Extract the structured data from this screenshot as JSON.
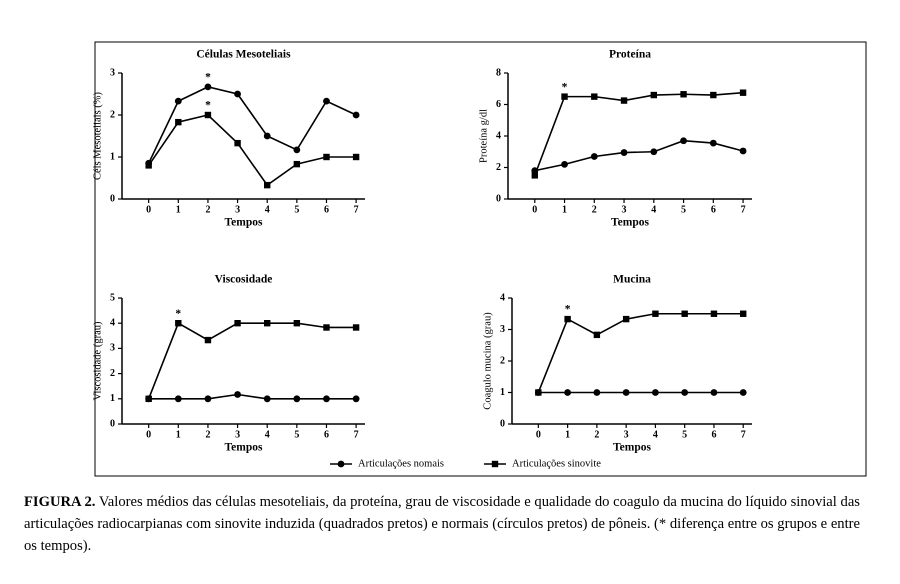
{
  "chart_data": [
    {
      "type": "line",
      "title": "Células Mesoteliais",
      "xlabel": "Tempos",
      "ylabel": "Céls Mesoteliais (%)",
      "x": [
        0,
        1,
        2,
        3,
        4,
        5,
        6,
        7
      ],
      "xlim": [
        -0.9,
        7.3
      ],
      "xticks": [
        0,
        1,
        2,
        3,
        4,
        5,
        6,
        7
      ],
      "ylim": [
        0,
        3
      ],
      "yticks": [
        0,
        1,
        2,
        3
      ],
      "series": [
        {
          "name": "Articulações nomais",
          "color": "#000000",
          "marker": "circle",
          "values": [
            0.85,
            2.33,
            2.67,
            2.5,
            1.5,
            1.17,
            2.33,
            2.0
          ]
        },
        {
          "name": "Articulações sinovite",
          "color": "#000000",
          "marker": "square",
          "values": [
            0.8,
            1.83,
            2.0,
            1.33,
            0.33,
            0.83,
            1.0,
            1.0
          ]
        }
      ],
      "annotations": [
        {
          "text": "*",
          "x": 2,
          "series": 0
        },
        {
          "text": "*",
          "x": 2,
          "series": 1
        }
      ]
    },
    {
      "type": "line",
      "title": "Proteína",
      "xlabel": "Tempos",
      "ylabel": "Proteína g/dl",
      "x": [
        0,
        1,
        2,
        3,
        4,
        5,
        6,
        7
      ],
      "xlim": [
        -0.9,
        7.3
      ],
      "xticks": [
        0,
        1,
        2,
        3,
        4,
        5,
        6,
        7
      ],
      "ylim": [
        0,
        8
      ],
      "yticks": [
        0,
        2,
        4,
        6,
        8
      ],
      "series": [
        {
          "name": "Articulações nomais",
          "color": "#000000",
          "marker": "circle",
          "values": [
            1.8,
            2.2,
            2.7,
            2.95,
            3.0,
            3.7,
            3.55,
            3.05
          ]
        },
        {
          "name": "Articulações sinovite",
          "color": "#000000",
          "marker": "square",
          "values": [
            1.5,
            6.5,
            6.5,
            6.25,
            6.6,
            6.65,
            6.6,
            6.75
          ]
        }
      ],
      "annotations": [
        {
          "text": "*",
          "x": 1,
          "series": 1
        }
      ]
    },
    {
      "type": "line",
      "title": "Viscosidade",
      "xlabel": "Tempos",
      "ylabel": "Viscosidade (grau)",
      "x": [
        0,
        1,
        2,
        3,
        4,
        5,
        6,
        7
      ],
      "xlim": [
        -0.9,
        7.3
      ],
      "xticks": [
        0,
        1,
        2,
        3,
        4,
        5,
        6,
        7
      ],
      "ylim": [
        0,
        5
      ],
      "yticks": [
        0,
        1,
        2,
        3,
        4,
        5
      ],
      "series": [
        {
          "name": "Articulações nomais",
          "color": "#000000",
          "marker": "circle",
          "values": [
            1,
            1,
            1,
            1.17,
            1,
            1,
            1,
            1
          ]
        },
        {
          "name": "Articulações sinovite",
          "color": "#000000",
          "marker": "square",
          "values": [
            1,
            4,
            3.33,
            4,
            4,
            4,
            3.83,
            3.83
          ]
        }
      ],
      "annotations": [
        {
          "text": "*",
          "x": 1,
          "series": 1
        }
      ]
    },
    {
      "type": "line",
      "title": "Mucina",
      "xlabel": "Tempos",
      "ylabel": "Coagulo mucina (grau)",
      "x": [
        0,
        1,
        2,
        3,
        4,
        5,
        6,
        7
      ],
      "xlim": [
        -0.9,
        7.3
      ],
      "xticks": [
        0,
        1,
        2,
        3,
        4,
        5,
        6,
        7
      ],
      "ylim": [
        0,
        4
      ],
      "yticks": [
        0,
        1,
        2,
        3,
        4
      ],
      "series": [
        {
          "name": "Articulações nomais",
          "color": "#000000",
          "marker": "circle",
          "values": [
            1,
            1,
            1,
            1,
            1,
            1,
            1,
            1
          ]
        },
        {
          "name": "Articulações sinovite",
          "color": "#000000",
          "marker": "square",
          "values": [
            1,
            3.33,
            2.83,
            3.33,
            3.5,
            3.5,
            3.5,
            3.5
          ]
        }
      ],
      "annotations": [
        {
          "text": "*",
          "x": 1,
          "series": 1
        }
      ]
    }
  ],
  "caption": {
    "label": "FIGURA 2.",
    "text": "Valores médios das células mesoteliais, da proteína, grau de viscosidade e qualidade do coagulo da mucina do líquido sinovial das articulações radiocarpianas com sinovite induzida (quadrados pretos) e normais (círculos pretos) de pôneis. (* diferença entre os grupos e entre os tempos)."
  }
}
